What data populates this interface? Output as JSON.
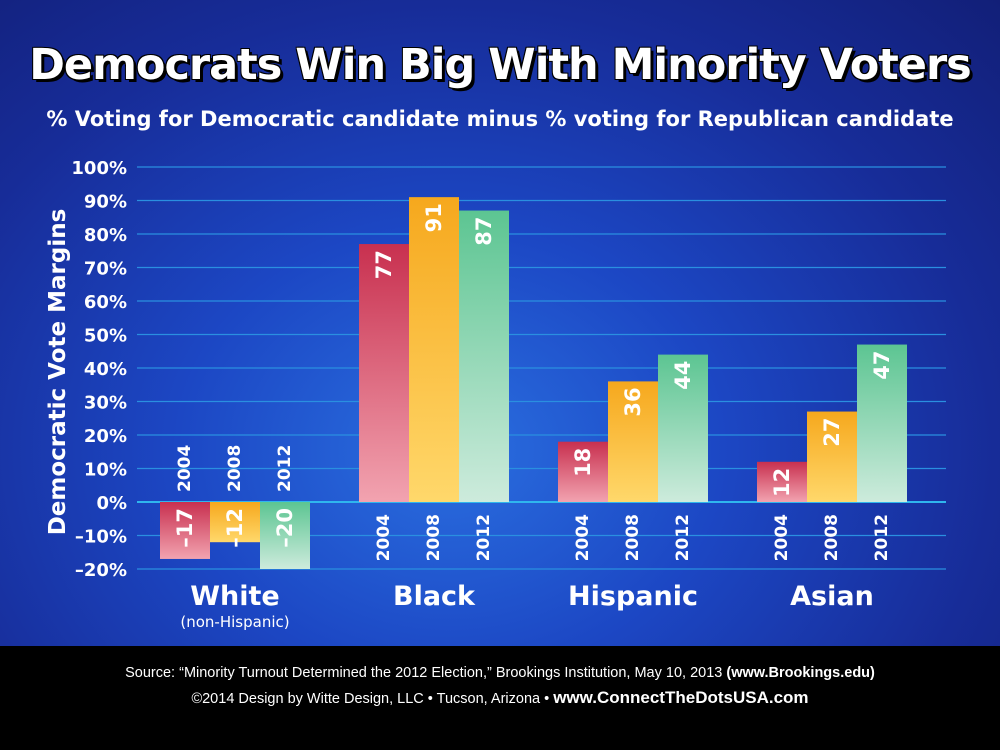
{
  "chart_data": {
    "type": "bar",
    "title": "Democrats Win Big With Minority Voters",
    "subtitle": "% Voting for Democratic candidate minus % voting for Republican candidate",
    "ylabel": "Democratic Vote Margins",
    "ylim": [
      -20,
      100
    ],
    "yticks": [
      "100%",
      "90%",
      "80%",
      "70%",
      "60%",
      "50%",
      "40%",
      "30%",
      "20%",
      "10%",
      "0%",
      "–10%",
      "–20%"
    ],
    "ytick_values": [
      100,
      90,
      80,
      70,
      60,
      50,
      40,
      30,
      20,
      10,
      0,
      -10,
      -20
    ],
    "groups": [
      {
        "label": "White",
        "sublabel": "(non-Hispanic)"
      },
      {
        "label": "Black",
        "sublabel": ""
      },
      {
        "label": "Hispanic",
        "sublabel": ""
      },
      {
        "label": "Asian",
        "sublabel": ""
      }
    ],
    "series": [
      {
        "name": "2004",
        "values": [
          -17,
          77,
          18,
          12
        ],
        "labels": [
          "–17",
          "77",
          "18",
          "12"
        ],
        "color": "#c8304f"
      },
      {
        "name": "2008",
        "values": [
          -12,
          91,
          36,
          27
        ],
        "labels": [
          "–12",
          "91",
          "36",
          "27"
        ],
        "color": "#f6a81d"
      },
      {
        "name": "2012",
        "values": [
          -20,
          87,
          44,
          47
        ],
        "labels": [
          "–20",
          "87",
          "44",
          "47"
        ],
        "color": "#5cc592"
      }
    ],
    "grid": true
  },
  "footer": {
    "source_text": "Source: “Minority Turnout Determined the 2012 Election,” Brookings Institution, May 10, 2013 ",
    "source_link": "(www.Brookings.edu)",
    "credit_text": "©2014 Design by Witte Design, LLC • Tucson, Arizona  •  ",
    "credit_site": "www.ConnectTheDotsUSA.com"
  }
}
